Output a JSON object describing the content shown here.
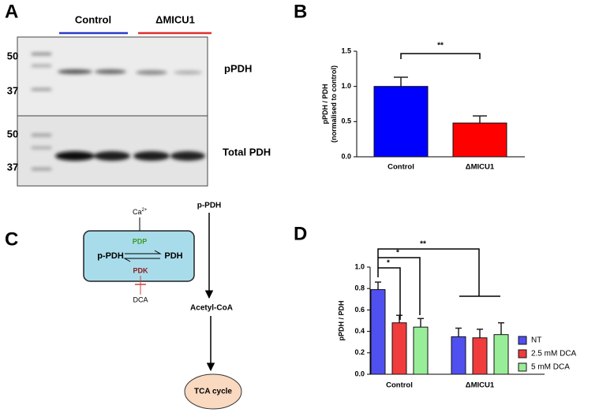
{
  "panels": {
    "a": "A",
    "b": "B",
    "c": "C",
    "d": "D"
  },
  "blot": {
    "groups": [
      "Control",
      "ΔMICU1"
    ],
    "top_markers": [
      "50",
      "37"
    ],
    "top_label": "pPDH",
    "bottom_markers": [
      "50",
      "37"
    ],
    "bottom_label": "Total PDH"
  },
  "pathway": {
    "calcium": {
      "text": "Ca",
      "superscript": "2+"
    },
    "phosphatase": "PDP",
    "left": "p-PDH",
    "right": "PDH",
    "kinase": "PDK",
    "inhibitor": "DCA",
    "flow": [
      "p-PDH",
      "Acetyl-CoA",
      "TCA cycle"
    ]
  },
  "chart_data": [
    {
      "type": "bar",
      "ylabel": [
        "pPDH / PDH",
        "(normalised to control)"
      ],
      "categories": [
        "Control",
        "ΔMICU1"
      ],
      "series": [
        {
          "name": null,
          "colors": [
            "#0000ff",
            "#ff0000"
          ],
          "values": [
            1.0,
            0.48
          ],
          "errors": [
            0.13,
            0.1
          ]
        }
      ],
      "ylim": [
        0,
        1.5
      ],
      "yticks": [
        {
          "value": 0,
          "label": "0.0"
        },
        0.5,
        {
          "value": 1,
          "label": "1.0"
        },
        1.5
      ],
      "annotations": [
        "**"
      ]
    },
    {
      "type": "bar",
      "ylabel": [
        "pPDH / PDH"
      ],
      "categories": [
        "Control",
        "ΔMICU1"
      ],
      "series": [
        {
          "name": "NT",
          "color": "#5050f0",
          "values": [
            0.79,
            0.35
          ],
          "errors": [
            0.07,
            0.08
          ]
        },
        {
          "name": "2.5 mM DCA",
          "color": "#f03c3c",
          "values": [
            0.48,
            0.34
          ],
          "errors": [
            0.07,
            0.08
          ]
        },
        {
          "name": "5 mM DCA",
          "color": "#98ee98",
          "values": [
            0.44,
            0.37
          ],
          "errors": [
            0.08,
            0.11
          ]
        }
      ],
      "ylim": [
        0,
        1.0
      ],
      "yticks": [
        {
          "value": 0,
          "label": "0.0"
        },
        0.2,
        0.4,
        0.6,
        0.8,
        {
          "value": 1,
          "label": "1.0"
        }
      ],
      "legend": "right",
      "annotations": [
        "**",
        "*",
        "*"
      ]
    }
  ]
}
